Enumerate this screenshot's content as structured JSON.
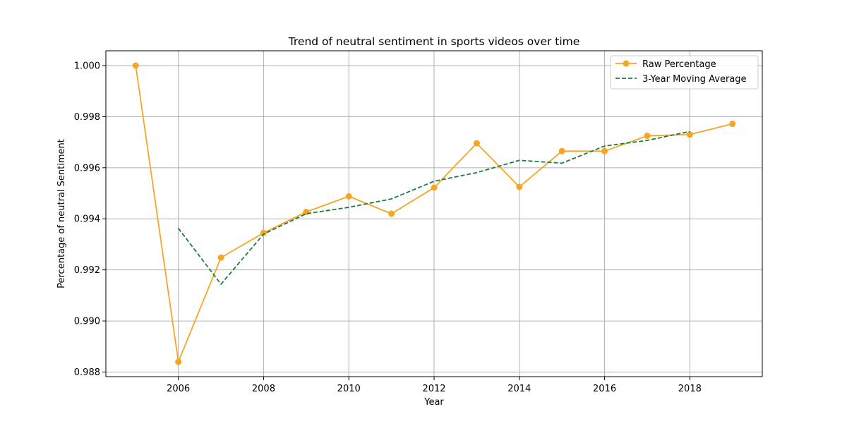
{
  "chart_data": {
    "type": "line",
    "title": "Trend of neutral sentiment in sports videos over time",
    "xlabel": "Year",
    "ylabel": "Percentage of neutral Sentiment",
    "xlim": [
      2004.3,
      2019.7
    ],
    "ylim": [
      0.98782,
      1.00058
    ],
    "x_ticks": [
      2006,
      2008,
      2010,
      2012,
      2014,
      2016,
      2018
    ],
    "y_ticks": [
      0.988,
      0.99,
      0.992,
      0.994,
      0.996,
      0.998,
      1.0
    ],
    "y_tick_labels": [
      "0.988",
      "0.990",
      "0.992",
      "0.994",
      "0.996",
      "0.998",
      "1.000"
    ],
    "grid": true,
    "legend_position": "top-right",
    "series": [
      {
        "name": "Raw Percentage",
        "color": "#f5a623",
        "style": "solid",
        "marker": "circle",
        "x": [
          2005,
          2006,
          2007,
          2008,
          2009,
          2010,
          2011,
          2012,
          2013,
          2014,
          2015,
          2016,
          2017,
          2018,
          2019
        ],
        "y": [
          1.0,
          0.9884,
          0.99248,
          0.99345,
          0.99427,
          0.99488,
          0.9942,
          0.99522,
          0.99696,
          0.99525,
          0.99665,
          0.99665,
          0.99725,
          0.9973,
          0.99772
        ]
      },
      {
        "name": "3-Year Moving Average",
        "color": "#1e7b3e",
        "style": "dashed",
        "marker": "none",
        "x": [
          2006,
          2007,
          2008,
          2009,
          2010,
          2011,
          2012,
          2013,
          2014,
          2015,
          2016,
          2017,
          2018
        ],
        "y": [
          0.99363,
          0.99144,
          0.9934,
          0.9942,
          0.99445,
          0.99478,
          0.99547,
          0.99581,
          0.99629,
          0.99618,
          0.99685,
          0.99707,
          0.99742
        ]
      }
    ]
  }
}
